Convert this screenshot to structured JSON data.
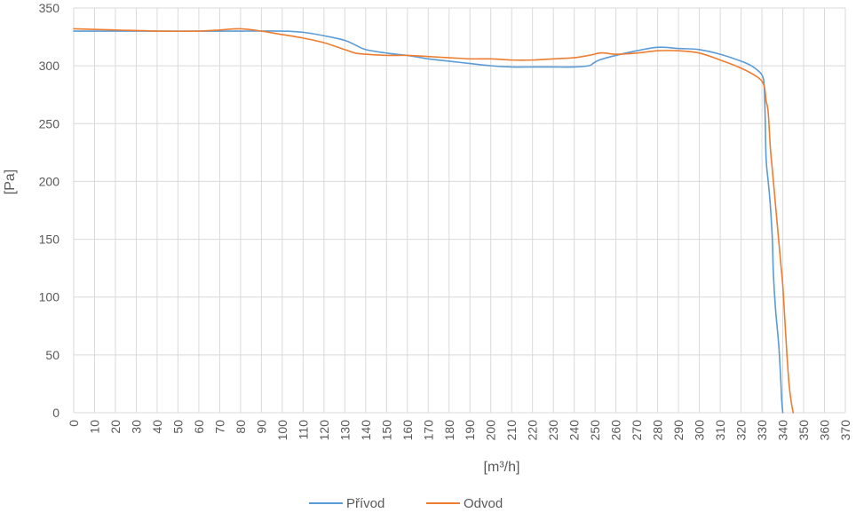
{
  "chart_data": {
    "type": "line",
    "title": "",
    "xlabel": "[m³/h]",
    "ylabel": "[Pa]",
    "xlim": [
      0,
      370
    ],
    "ylim": [
      0,
      350
    ],
    "x_ticks": [
      0,
      10,
      20,
      30,
      40,
      50,
      60,
      70,
      80,
      90,
      100,
      110,
      120,
      130,
      140,
      150,
      160,
      170,
      180,
      190,
      200,
      210,
      220,
      230,
      240,
      250,
      260,
      270,
      280,
      290,
      300,
      310,
      320,
      330,
      340,
      350,
      360,
      370
    ],
    "y_ticks": [
      0,
      50,
      100,
      150,
      200,
      250,
      300,
      350
    ],
    "grid": true,
    "legend_position": "bottom",
    "series": [
      {
        "name": "Přívod",
        "color": "#5b9bd5",
        "points": [
          [
            0,
            330
          ],
          [
            20,
            330
          ],
          [
            40,
            330
          ],
          [
            60,
            330
          ],
          [
            80,
            330
          ],
          [
            100,
            330
          ],
          [
            110,
            329
          ],
          [
            120,
            326
          ],
          [
            130,
            322
          ],
          [
            135,
            318
          ],
          [
            140,
            314
          ],
          [
            150,
            311
          ],
          [
            160,
            309
          ],
          [
            170,
            306
          ],
          [
            180,
            304
          ],
          [
            190,
            302
          ],
          [
            200,
            300
          ],
          [
            210,
            299
          ],
          [
            220,
            299
          ],
          [
            230,
            299
          ],
          [
            240,
            299
          ],
          [
            247,
            300
          ],
          [
            249,
            302
          ],
          [
            252,
            305
          ],
          [
            260,
            309
          ],
          [
            270,
            313
          ],
          [
            280,
            316
          ],
          [
            290,
            315
          ],
          [
            300,
            314
          ],
          [
            310,
            310
          ],
          [
            320,
            304
          ],
          [
            325,
            300
          ],
          [
            328,
            296
          ],
          [
            330,
            292
          ],
          [
            331,
            285
          ],
          [
            331.5,
            260
          ],
          [
            332,
            220
          ],
          [
            333,
            200
          ],
          [
            334,
            180
          ],
          [
            335,
            150
          ],
          [
            335.5,
            120
          ],
          [
            336.5,
            90
          ],
          [
            338,
            60
          ],
          [
            339,
            30
          ],
          [
            339.5,
            10
          ],
          [
            340,
            0
          ]
        ]
      },
      {
        "name": "Odvod",
        "color": "#ed7d31",
        "points": [
          [
            0,
            332
          ],
          [
            20,
            331
          ],
          [
            40,
            330
          ],
          [
            60,
            330
          ],
          [
            70,
            331
          ],
          [
            80,
            332
          ],
          [
            90,
            330
          ],
          [
            100,
            327
          ],
          [
            110,
            324
          ],
          [
            120,
            320
          ],
          [
            130,
            314
          ],
          [
            135,
            311
          ],
          [
            140,
            310
          ],
          [
            150,
            309
          ],
          [
            160,
            309
          ],
          [
            170,
            308
          ],
          [
            180,
            307
          ],
          [
            190,
            306
          ],
          [
            200,
            306
          ],
          [
            210,
            305
          ],
          [
            220,
            305
          ],
          [
            230,
            306
          ],
          [
            240,
            307
          ],
          [
            247,
            309
          ],
          [
            252,
            311
          ],
          [
            255,
            311
          ],
          [
            260,
            310
          ],
          [
            270,
            311
          ],
          [
            280,
            313
          ],
          [
            290,
            313
          ],
          [
            300,
            311
          ],
          [
            310,
            305
          ],
          [
            320,
            298
          ],
          [
            328,
            290
          ],
          [
            331,
            283
          ],
          [
            332,
            270
          ],
          [
            333,
            260
          ],
          [
            334,
            230
          ],
          [
            335,
            210
          ],
          [
            336,
            190
          ],
          [
            337,
            170
          ],
          [
            338,
            150
          ],
          [
            339,
            130
          ],
          [
            340,
            110
          ],
          [
            341,
            80
          ],
          [
            342,
            50
          ],
          [
            343,
            25
          ],
          [
            344,
            10
          ],
          [
            345,
            0
          ]
        ]
      }
    ]
  }
}
